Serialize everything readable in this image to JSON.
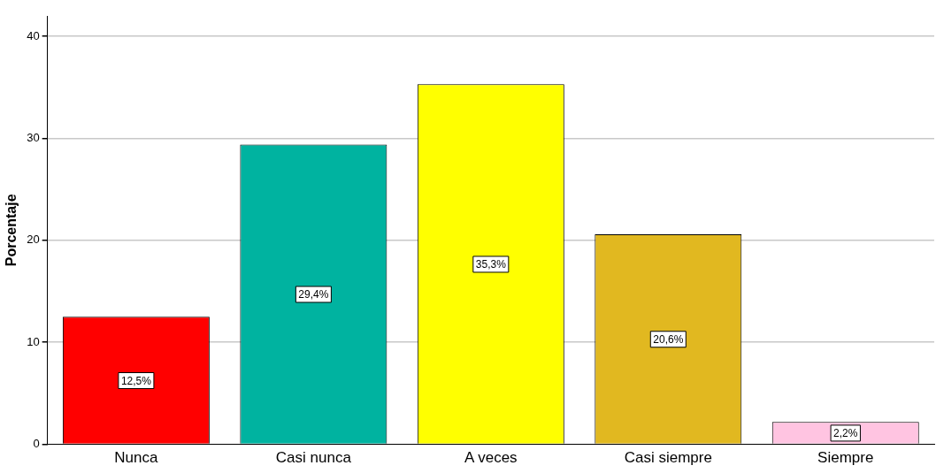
{
  "chart_data": {
    "type": "bar",
    "ylabel": "Porcentaje",
    "categories": [
      "Nunca",
      "Casi nunca",
      "A veces",
      "Casi siempre",
      "Siempre"
    ],
    "values": [
      12.5,
      29.4,
      35.3,
      20.6,
      2.2
    ],
    "colors": [
      "#ff0000",
      "#00b3a0",
      "#ffff00",
      "#e1b820",
      "#ffc4e1"
    ],
    "value_labels": [
      "12,5%",
      "29,4%",
      "35,3%",
      "20,6%",
      "2,2%"
    ],
    "ylim": [
      0,
      42
    ],
    "yticks": [
      0,
      10,
      20,
      30,
      40
    ],
    "grid": "y",
    "legend": false
  }
}
